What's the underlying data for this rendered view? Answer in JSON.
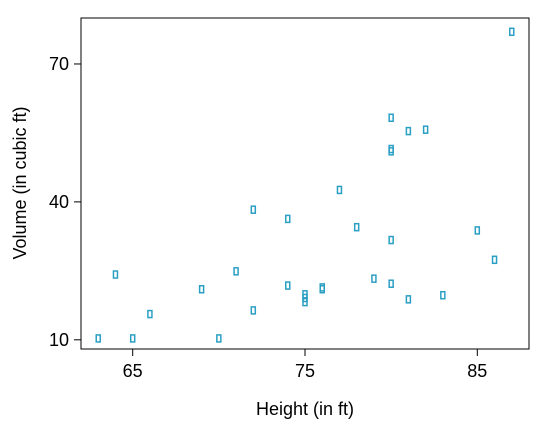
{
  "chart_data": {
    "type": "scatter",
    "xlabel": "Height (in ft)",
    "ylabel": "Volume (in cubic ft)",
    "xlim": [
      62,
      88
    ],
    "ylim": [
      8,
      80
    ],
    "xticks": [
      65,
      75,
      85
    ],
    "yticks": [
      10,
      40,
      70
    ],
    "grid": false,
    "marker": "open-rectangle",
    "color": "#2a9fc4",
    "points": [
      {
        "x": 63,
        "y": 10.3
      },
      {
        "x": 65,
        "y": 10.3
      },
      {
        "x": 66,
        "y": 15.6
      },
      {
        "x": 64,
        "y": 24.2
      },
      {
        "x": 69,
        "y": 21.0
      },
      {
        "x": 70,
        "y": 10.3
      },
      {
        "x": 71,
        "y": 24.9
      },
      {
        "x": 72,
        "y": 16.4
      },
      {
        "x": 72,
        "y": 38.3
      },
      {
        "x": 74,
        "y": 21.8
      },
      {
        "x": 74,
        "y": 36.3
      },
      {
        "x": 75,
        "y": 18.2
      },
      {
        "x": 75,
        "y": 19.1
      },
      {
        "x": 75,
        "y": 19.9
      },
      {
        "x": 76,
        "y": 21.0
      },
      {
        "x": 76,
        "y": 21.4
      },
      {
        "x": 77,
        "y": 42.6
      },
      {
        "x": 78,
        "y": 34.5
      },
      {
        "x": 79,
        "y": 23.3
      },
      {
        "x": 80,
        "y": 22.2
      },
      {
        "x": 80,
        "y": 31.7
      },
      {
        "x": 80,
        "y": 51.0
      },
      {
        "x": 80,
        "y": 51.5
      },
      {
        "x": 80,
        "y": 58.3
      },
      {
        "x": 81,
        "y": 18.8
      },
      {
        "x": 81,
        "y": 55.4
      },
      {
        "x": 82,
        "y": 55.7
      },
      {
        "x": 83,
        "y": 19.7
      },
      {
        "x": 85,
        "y": 33.8
      },
      {
        "x": 86,
        "y": 27.4
      },
      {
        "x": 87,
        "y": 77.0
      }
    ]
  }
}
